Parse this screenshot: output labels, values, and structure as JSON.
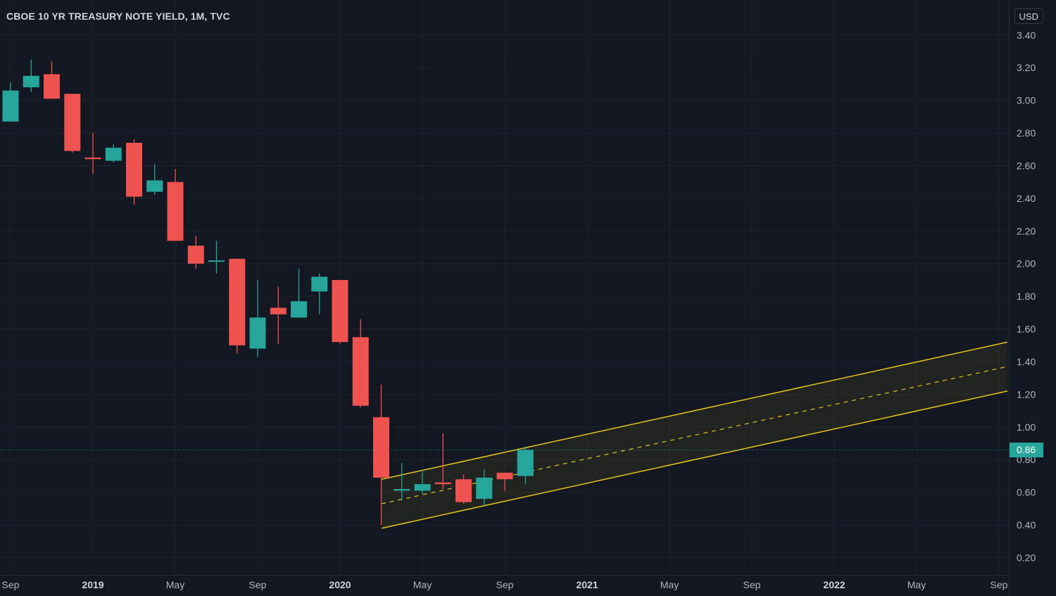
{
  "header": {
    "title": "CBOE 10 YR TREASURY NOTE YIELD, 1M, TVC",
    "currency_label": "USD"
  },
  "colors": {
    "background": "#131722",
    "grid": "#1e222d",
    "axis_text": "#b2b5be",
    "up": "#26a69a",
    "down": "#ef5350",
    "channel_line": "#e6c619",
    "channel_fill": "rgba(230,198,25,0.07)",
    "last_price": "#26a69a"
  },
  "chart_data": {
    "type": "candlestick",
    "interval": "1M",
    "currency": "USD",
    "ylim": [
      0.1,
      3.5
    ],
    "y_ticks": [
      "0.20",
      "0.40",
      "0.60",
      "0.80",
      "1.00",
      "1.20",
      "1.40",
      "1.60",
      "1.80",
      "2.00",
      "2.20",
      "2.40",
      "2.60",
      "2.80",
      "3.00",
      "3.20",
      "3.40"
    ],
    "x_ticks": [
      {
        "month": "2018-09",
        "label": "Sep",
        "bold": false
      },
      {
        "month": "2019-01",
        "label": "2019",
        "bold": true
      },
      {
        "month": "2019-05",
        "label": "May",
        "bold": false
      },
      {
        "month": "2019-09",
        "label": "Sep",
        "bold": false
      },
      {
        "month": "2020-01",
        "label": "2020",
        "bold": true
      },
      {
        "month": "2020-05",
        "label": "May",
        "bold": false
      },
      {
        "month": "2020-09",
        "label": "Sep",
        "bold": false
      },
      {
        "month": "2021-01",
        "label": "2021",
        "bold": true
      },
      {
        "month": "2021-05",
        "label": "May",
        "bold": false
      },
      {
        "month": "2021-09",
        "label": "Sep",
        "bold": false
      },
      {
        "month": "2022-01",
        "label": "2022",
        "bold": true
      },
      {
        "month": "2022-05",
        "label": "May",
        "bold": false
      },
      {
        "month": "2022-09",
        "label": "Sep",
        "bold": false
      }
    ],
    "candles": [
      {
        "month": "2018-09",
        "open": 2.87,
        "high": 3.11,
        "low": 2.87,
        "close": 3.06
      },
      {
        "month": "2018-10",
        "open": 3.08,
        "high": 3.25,
        "low": 3.05,
        "close": 3.15
      },
      {
        "month": "2018-11",
        "open": 3.16,
        "high": 3.24,
        "low": 3.01,
        "close": 3.01
      },
      {
        "month": "2018-12",
        "open": 3.04,
        "high": 3.04,
        "low": 2.68,
        "close": 2.69
      },
      {
        "month": "2019-01",
        "open": 2.65,
        "high": 2.8,
        "low": 2.55,
        "close": 2.64
      },
      {
        "month": "2019-02",
        "open": 2.63,
        "high": 2.73,
        "low": 2.62,
        "close": 2.71
      },
      {
        "month": "2019-03",
        "open": 2.74,
        "high": 2.76,
        "low": 2.36,
        "close": 2.41
      },
      {
        "month": "2019-04",
        "open": 2.44,
        "high": 2.61,
        "low": 2.42,
        "close": 2.51
      },
      {
        "month": "2019-05",
        "open": 2.5,
        "high": 2.58,
        "low": 2.14,
        "close": 2.14
      },
      {
        "month": "2019-06",
        "open": 2.11,
        "high": 2.17,
        "low": 1.97,
        "close": 2.0
      },
      {
        "month": "2019-07",
        "open": 2.02,
        "high": 2.14,
        "low": 1.94,
        "close": 2.02
      },
      {
        "month": "2019-08",
        "open": 2.03,
        "high": 2.03,
        "low": 1.45,
        "close": 1.5
      },
      {
        "month": "2019-09",
        "open": 1.48,
        "high": 1.9,
        "low": 1.43,
        "close": 1.67
      },
      {
        "month": "2019-10",
        "open": 1.73,
        "high": 1.86,
        "low": 1.51,
        "close": 1.69
      },
      {
        "month": "2019-11",
        "open": 1.67,
        "high": 1.97,
        "low": 1.67,
        "close": 1.77
      },
      {
        "month": "2019-12",
        "open": 1.83,
        "high": 1.94,
        "low": 1.69,
        "close": 1.92
      },
      {
        "month": "2020-01",
        "open": 1.9,
        "high": 1.9,
        "low": 1.51,
        "close": 1.52
      },
      {
        "month": "2020-02",
        "open": 1.55,
        "high": 1.66,
        "low": 1.12,
        "close": 1.13
      },
      {
        "month": "2020-03",
        "open": 1.06,
        "high": 1.26,
        "low": 0.4,
        "close": 0.69
      },
      {
        "month": "2020-04",
        "open": 0.61,
        "high": 0.78,
        "low": 0.55,
        "close": 0.62
      },
      {
        "month": "2020-05",
        "open": 0.61,
        "high": 0.74,
        "low": 0.59,
        "close": 0.65
      },
      {
        "month": "2020-06",
        "open": 0.66,
        "high": 0.96,
        "low": 0.62,
        "close": 0.65
      },
      {
        "month": "2020-07",
        "open": 0.68,
        "high": 0.71,
        "low": 0.53,
        "close": 0.54
      },
      {
        "month": "2020-08",
        "open": 0.56,
        "high": 0.74,
        "low": 0.51,
        "close": 0.69
      },
      {
        "month": "2020-09",
        "open": 0.72,
        "high": 0.72,
        "low": 0.61,
        "close": 0.68
      },
      {
        "month": "2020-10",
        "open": 0.7,
        "high": 0.88,
        "low": 0.65,
        "close": 0.86
      }
    ],
    "channel": {
      "start": {
        "month": "2020-03",
        "upper": 0.68,
        "mid": 0.53,
        "lower": 0.38
      },
      "end": {
        "month": "2022-09",
        "upper": 1.52,
        "mid": 1.37,
        "lower": 1.22
      }
    },
    "last_price": {
      "value": 0.86,
      "label": "0.86"
    }
  }
}
